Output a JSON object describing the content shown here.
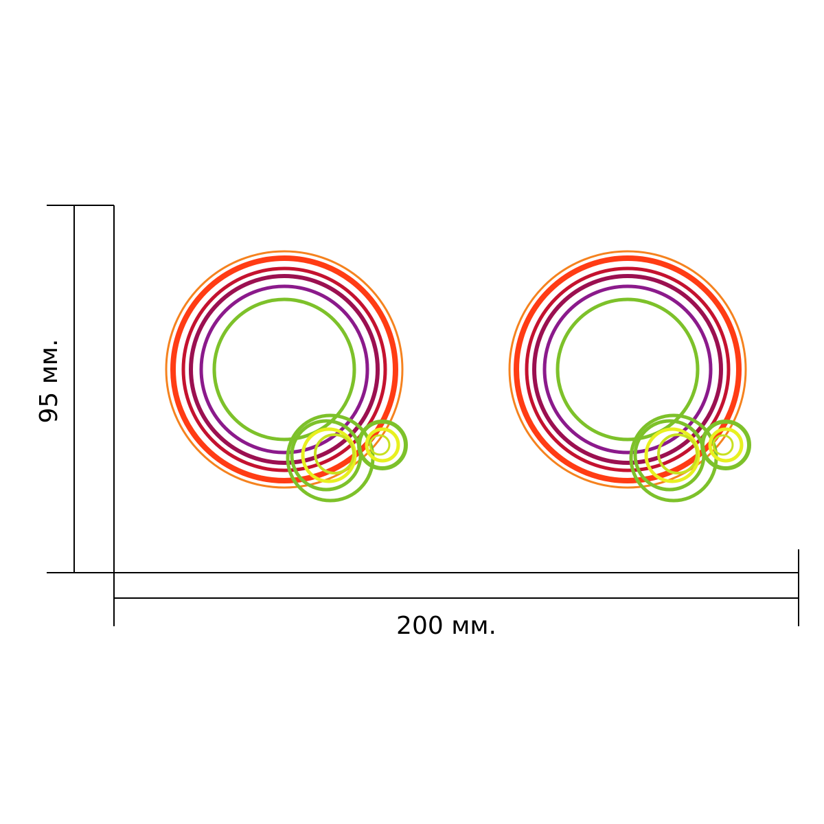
{
  "dimensions": {
    "width_label": "200 мм.",
    "height_label": "95 мм."
  },
  "colors": {
    "outer_ring": "#f5821f",
    "red_ring": "#ff3c14",
    "dark_red_ring": "#c4122f",
    "maroon_ring": "#9b1050",
    "purple_ring": "#8b1a8b",
    "green_ring": "#7dc12a",
    "yellow_ring": "#e8f020",
    "yellow_green_ring": "#c8e020",
    "dimension_line": "#000000"
  },
  "badges": [
    {
      "name": "left-badge"
    },
    {
      "name": "right-badge"
    }
  ]
}
